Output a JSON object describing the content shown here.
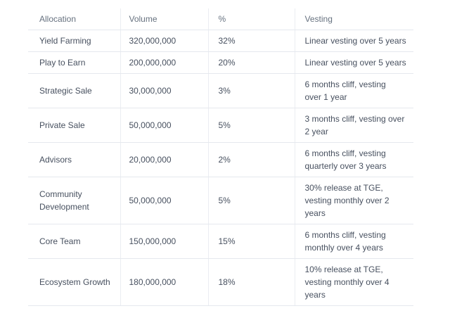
{
  "table": {
    "columns": [
      {
        "label": "Allocation"
      },
      {
        "label": "Volume"
      },
      {
        "label": "%"
      },
      {
        "label": "Vesting"
      }
    ],
    "rows": [
      {
        "allocation": "Yield Farming",
        "volume": "320,000,000",
        "percent": "32%",
        "vesting": "Linear vesting over 5 years"
      },
      {
        "allocation": "Play to Earn",
        "volume": "200,000,000",
        "percent": "20%",
        "vesting": "Linear vesting over 5 years"
      },
      {
        "allocation": "Strategic Sale",
        "volume": "30,000,000",
        "percent": "3%",
        "vesting": "6 months cliff, vesting\nover 1 year"
      },
      {
        "allocation": "Private Sale",
        "volume": "50,000,000",
        "percent": "5%",
        "vesting": "3 months cliff, vesting over\n2 year"
      },
      {
        "allocation": "Advisors",
        "volume": "20,000,000",
        "percent": "2%",
        "vesting": "6 months cliff, vesting\nquarterly over 3 years"
      },
      {
        "allocation": "Community Development",
        "volume": "50,000,000",
        "percent": "5%",
        "vesting": "30% release at TGE,\nvesting monthly over 2\nyears"
      },
      {
        "allocation": "Core Team",
        "volume": "150,000,000",
        "percent": "15%",
        "vesting": "6 months cliff, vesting\nmonthly over 4 years"
      },
      {
        "allocation": "Ecosystem Growth",
        "volume": "180,000,000",
        "percent": "18%",
        "vesting": "10% release at TGE,\nvesting monthly over 4\nyears"
      }
    ],
    "colors": {
      "header_text": "#66717f",
      "body_text": "#47505f",
      "row_border": "#e5e8ee",
      "column_border": "#ebedf2",
      "background": "#ffffff"
    }
  }
}
